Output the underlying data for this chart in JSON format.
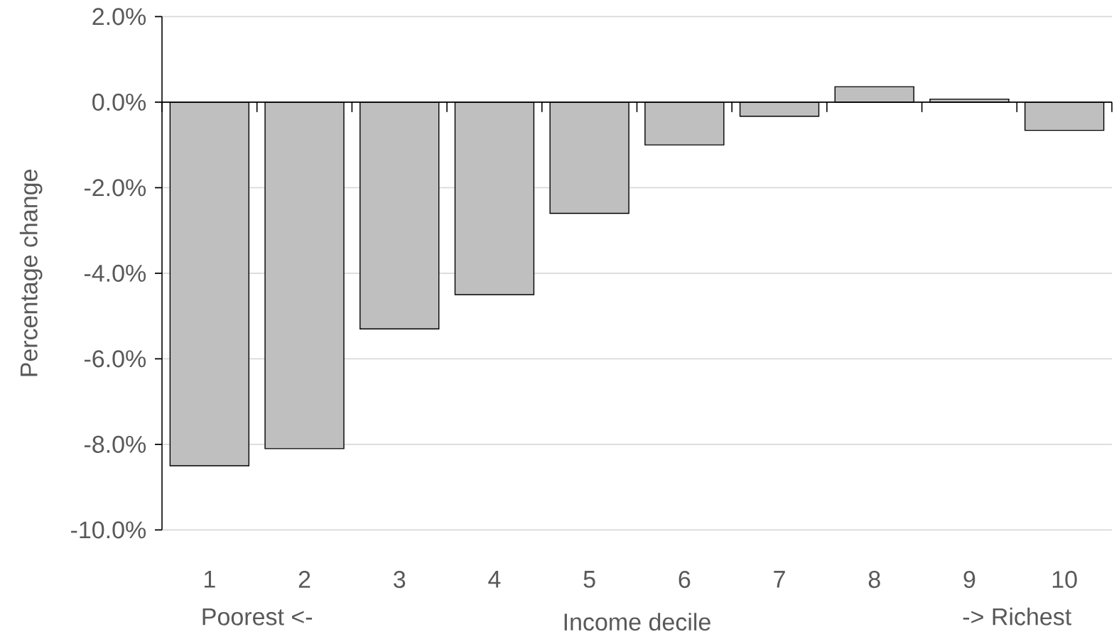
{
  "chart_data": {
    "type": "bar",
    "xlabel": "Income decile",
    "ylabel": "Percentage change",
    "categories": [
      "1",
      "2",
      "3",
      "4",
      "5",
      "6",
      "7",
      "8",
      "9",
      "10"
    ],
    "values": [
      -8.5,
      -8.1,
      -5.3,
      -4.5,
      -2.6,
      -1.0,
      -0.33,
      0.36,
      0.07,
      -0.66
    ],
    "color": "#bfbfbf",
    "ylim": [
      -10,
      2
    ],
    "yticks": [
      {
        "value": -10,
        "label": "-10.0%"
      },
      {
        "value": -8,
        "label": "-8.0%"
      },
      {
        "value": -6,
        "label": "-6.0%"
      },
      {
        "value": -4,
        "label": "-4.0%"
      },
      {
        "value": -2,
        "label": "-2.0%"
      },
      {
        "value": 0,
        "label": "0.0%"
      },
      {
        "value": 2,
        "label": "2.0%"
      }
    ],
    "grid": "y",
    "annotations": [
      "Poorest <-",
      "-> Richest"
    ]
  }
}
